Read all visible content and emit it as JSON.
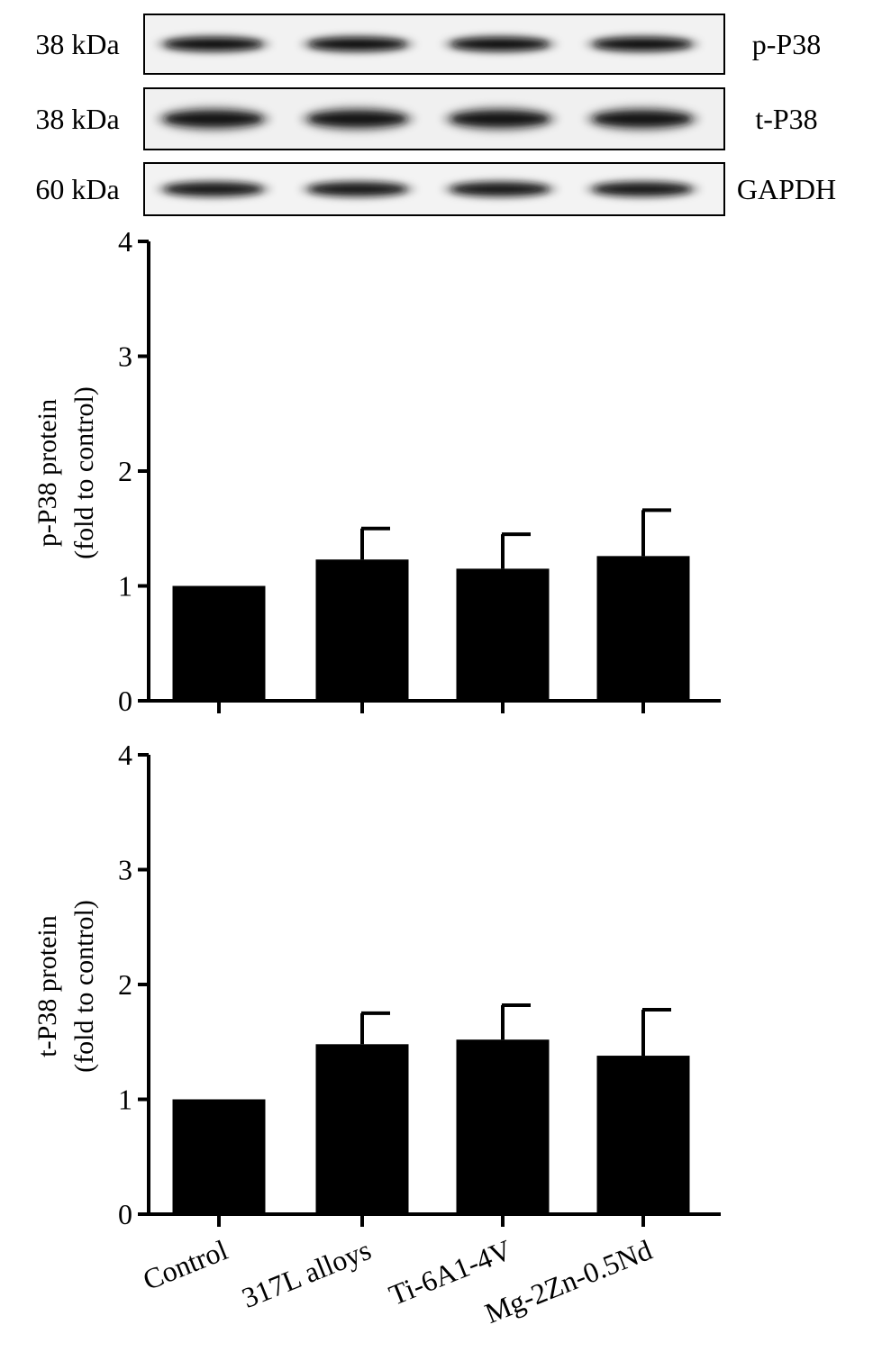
{
  "blots": [
    {
      "kda": "38 kDa",
      "protein": "p-P38",
      "background": "#f2f2f2",
      "band_color": "#111111"
    },
    {
      "kda": "38 kDa",
      "protein": "t-P38",
      "background": "#f0f0f0",
      "band_color": "#161616"
    },
    {
      "kda": "60 kDa",
      "protein": "GAPDH",
      "background": "#f3f3f3",
      "band_color": "#121212"
    }
  ],
  "chart_data": [
    {
      "type": "bar",
      "categories": [
        "Control",
        "317L alloys",
        "Ti-6A1-4V",
        "Mg-2Zn-0.5Nd"
      ],
      "values": [
        1.0,
        1.23,
        1.15,
        1.26
      ],
      "error": [
        0,
        0.27,
        0.3,
        0.4
      ],
      "ylabel": [
        "p-P38 protein",
        "(fold to control)"
      ],
      "ylim": [
        0,
        4
      ],
      "yticks": [
        "0",
        "1",
        "2",
        "3",
        "4"
      ],
      "bar_color": "#000000"
    },
    {
      "type": "bar",
      "categories": [
        "Control",
        "317L alloys",
        "Ti-6A1-4V",
        "Mg-2Zn-0.5Nd"
      ],
      "values": [
        1.0,
        1.48,
        1.52,
        1.38
      ],
      "error": [
        0,
        0.27,
        0.3,
        0.4
      ],
      "ylabel": [
        "t-P38 protein",
        "(fold to control)"
      ],
      "ylim": [
        0,
        4
      ],
      "yticks": [
        "0",
        "1",
        "2",
        "3",
        "4"
      ],
      "bar_color": "#000000"
    }
  ]
}
